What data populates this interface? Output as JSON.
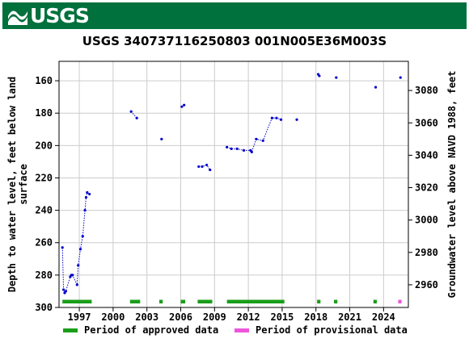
{
  "header": {
    "logo_text": "USGS"
  },
  "chart_data": {
    "type": "scatter",
    "title": "USGS 340737116250803 001N005E36M003S",
    "ylabel_left": "Depth to water level, feet below land surface",
    "ylabel_left_lines": [
      "Depth to water level, feet below land",
      "surface"
    ],
    "ylabel_right": "Groundwater level above NAVD 1988, feet",
    "xlim": [
      1995.2,
      2026.2
    ],
    "ylim_left": [
      300,
      148
    ],
    "ylim_right": [
      2946,
      3098
    ],
    "x_ticks": [
      1997,
      2000,
      2003,
      2006,
      2009,
      2012,
      2015,
      2018,
      2021,
      2024
    ],
    "y_ticks_left": [
      160,
      180,
      200,
      220,
      240,
      260,
      280,
      300
    ],
    "y_ticks_right": [
      3080,
      3060,
      3040,
      3020,
      3000,
      2980,
      2960
    ],
    "grid": true,
    "connected_segments": [
      [
        [
          1995.5,
          263
        ],
        [
          1995.6,
          289
        ],
        [
          1995.7,
          291
        ],
        [
          1995.8,
          290
        ],
        [
          1996.2,
          281
        ],
        [
          1996.3,
          280
        ],
        [
          1996.4,
          280
        ],
        [
          1996.8,
          286
        ],
        [
          1996.9,
          274
        ],
        [
          1997.1,
          264
        ],
        [
          1997.3,
          256
        ],
        [
          1997.5,
          240
        ],
        [
          1997.6,
          232
        ],
        [
          1997.7,
          229
        ],
        [
          1997.9,
          230
        ]
      ],
      [
        [
          2001.6,
          179
        ],
        [
          2002.1,
          183
        ]
      ],
      [
        [
          2006.1,
          176
        ],
        [
          2006.3,
          175
        ]
      ],
      [
        [
          2007.6,
          213
        ],
        [
          2007.9,
          213
        ],
        [
          2008.3,
          212
        ],
        [
          2008.6,
          215
        ]
      ],
      [
        [
          2010.1,
          201
        ],
        [
          2010.5,
          202
        ],
        [
          2011.0,
          202
        ],
        [
          2011.6,
          203
        ],
        [
          2012.2,
          203
        ],
        [
          2012.3,
          204
        ],
        [
          2012.7,
          196
        ],
        [
          2013.3,
          197
        ],
        [
          2014.1,
          183
        ],
        [
          2014.5,
          183
        ],
        [
          2014.9,
          184
        ]
      ],
      [
        [
          2018.2,
          156
        ],
        [
          2018.3,
          157
        ]
      ]
    ],
    "isolated_points": [
      [
        2004.3,
        196
      ],
      [
        2016.3,
        184
      ],
      [
        2019.8,
        158
      ],
      [
        2023.3,
        164
      ],
      [
        2025.5,
        158
      ]
    ],
    "approved_periods": [
      [
        1995.5,
        1998.1
      ],
      [
        2001.5,
        2002.4
      ],
      [
        2004.1,
        2004.4
      ],
      [
        2006.0,
        2006.4
      ],
      [
        2007.5,
        2008.8
      ],
      [
        2010.1,
        2015.2
      ],
      [
        2018.1,
        2018.4
      ],
      [
        2019.6,
        2019.9
      ],
      [
        2023.1,
        2023.4
      ]
    ],
    "provisional_periods": [
      [
        2025.3,
        2025.6
      ]
    ],
    "colors": {
      "approved": "#1a9e1a",
      "provisional": "#ee55dd",
      "series": "#0000cc",
      "grid": "#cccccc",
      "banner": "#00703c"
    },
    "legend": [
      {
        "label": "Period of approved data",
        "color": "#1a9e1a"
      },
      {
        "label": "Period of provisional data",
        "color": "#ee55dd"
      }
    ]
  }
}
